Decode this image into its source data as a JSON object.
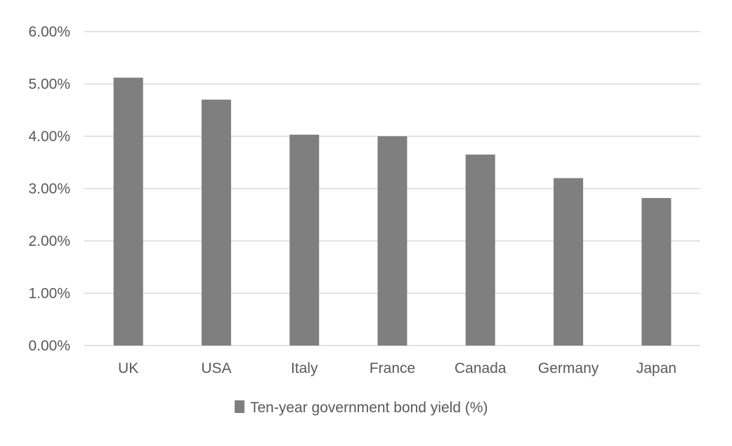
{
  "chart_data": {
    "type": "bar",
    "title": "",
    "xlabel": "",
    "ylabel": "",
    "categories": [
      "UK",
      "USA",
      "Italy",
      "France",
      "Canada",
      "Germany",
      "Japan"
    ],
    "series": [
      {
        "name": "Ten-year government bond yield (%)",
        "values": [
          5.12,
          4.7,
          4.03,
          4.0,
          3.65,
          3.2,
          2.82
        ],
        "color": "#7f7f7f"
      }
    ],
    "ylim": [
      0,
      6
    ],
    "yticks": [
      0,
      1,
      2,
      3,
      4,
      5,
      6
    ],
    "ytick_labels": [
      "0.00%",
      "1.00%",
      "2.00%",
      "3.00%",
      "4.00%",
      "5.00%",
      "6.00%"
    ],
    "grid": true,
    "gridline_color": "#d9d9d9",
    "legend_position": "bottom"
  }
}
